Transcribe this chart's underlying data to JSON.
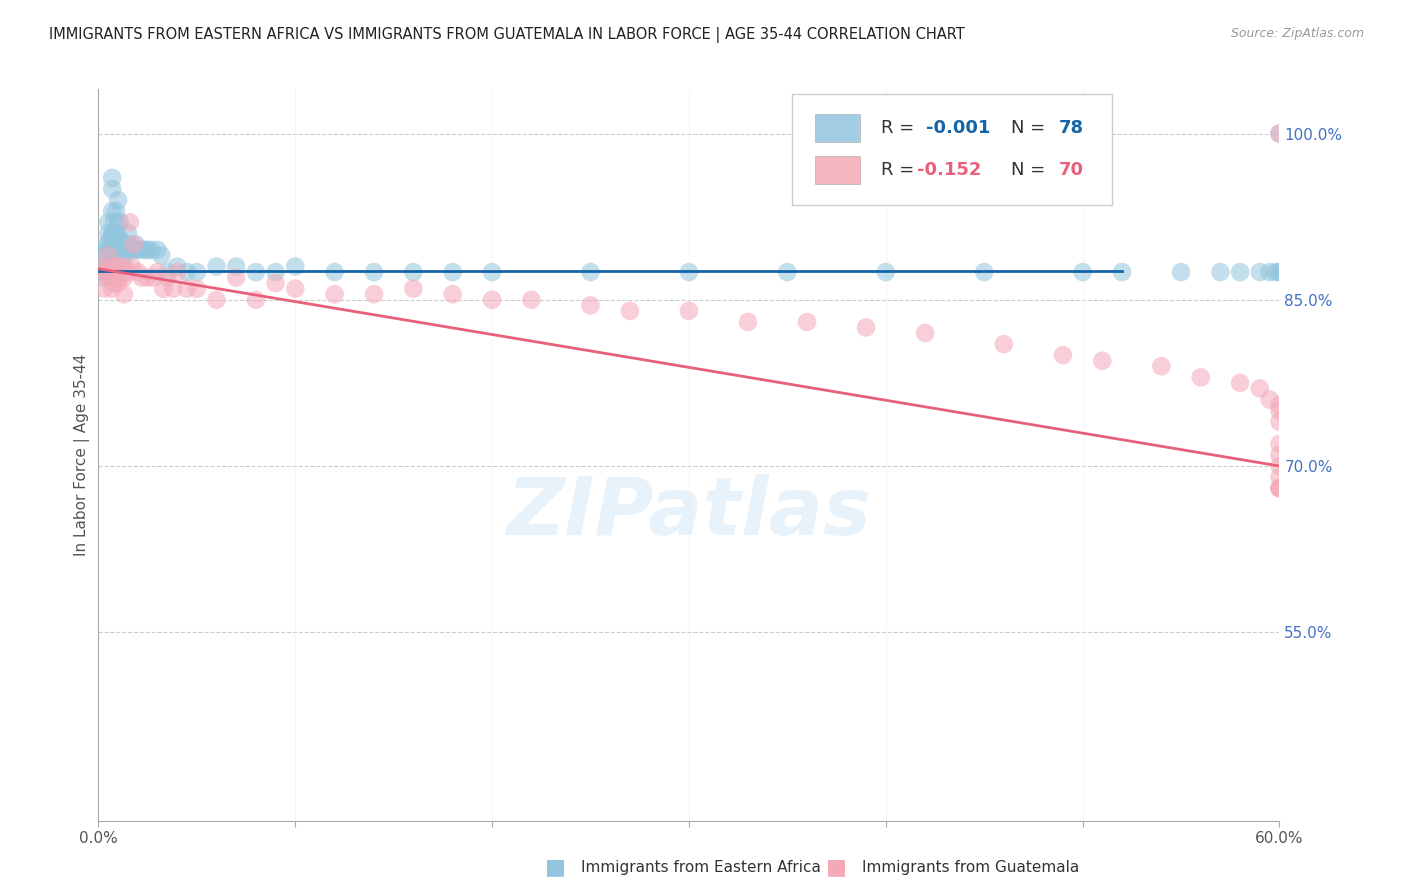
{
  "title": "IMMIGRANTS FROM EASTERN AFRICA VS IMMIGRANTS FROM GUATEMALA IN LABOR FORCE | AGE 35-44 CORRELATION CHART",
  "source": "Source: ZipAtlas.com",
  "ylabel": "In Labor Force | Age 35-44",
  "xlim": [
    0.0,
    0.6
  ],
  "ylim": [
    0.38,
    1.04
  ],
  "right_yticks": [
    1.0,
    0.85,
    0.7,
    0.55
  ],
  "right_yticklabels": [
    "100.0%",
    "85.0%",
    "70.0%",
    "55.0%"
  ],
  "legend_blue_r": "-0.001",
  "legend_blue_n": "78",
  "legend_pink_r": "-0.152",
  "legend_pink_n": "70",
  "blue_color": "#92c5de",
  "pink_color": "#f4a9b8",
  "blue_line_color": "#1464a8",
  "pink_line_color": "#e8607a",
  "blue_scatter_alpha": 0.55,
  "pink_scatter_alpha": 0.55,
  "watermark": "ZIPatlas",
  "legend_x_label": "Immigrants from Eastern Africa",
  "legend_p_label": "Immigrants from Guatemala",
  "blue_r_color": "#1464a8",
  "pink_r_color": "#e8607a",
  "blue_x": [
    0.002,
    0.002,
    0.003,
    0.003,
    0.003,
    0.004,
    0.004,
    0.004,
    0.005,
    0.005,
    0.005,
    0.005,
    0.006,
    0.006,
    0.006,
    0.007,
    0.007,
    0.007,
    0.007,
    0.008,
    0.008,
    0.008,
    0.009,
    0.009,
    0.009,
    0.01,
    0.01,
    0.01,
    0.011,
    0.011,
    0.012,
    0.012,
    0.013,
    0.013,
    0.014,
    0.015,
    0.015,
    0.016,
    0.017,
    0.018,
    0.019,
    0.02,
    0.022,
    0.024,
    0.025,
    0.027,
    0.03,
    0.032,
    0.035,
    0.04,
    0.045,
    0.05,
    0.06,
    0.07,
    0.08,
    0.09,
    0.1,
    0.12,
    0.14,
    0.16,
    0.18,
    0.2,
    0.25,
    0.3,
    0.35,
    0.4,
    0.45,
    0.5,
    0.52,
    0.55,
    0.57,
    0.58,
    0.59,
    0.595,
    0.598,
    0.6,
    0.6,
    0.6
  ],
  "blue_y": [
    0.88,
    0.875,
    0.895,
    0.88,
    0.87,
    0.9,
    0.89,
    0.875,
    0.92,
    0.91,
    0.895,
    0.88,
    0.905,
    0.895,
    0.88,
    0.96,
    0.95,
    0.93,
    0.91,
    0.92,
    0.91,
    0.895,
    0.93,
    0.91,
    0.895,
    0.94,
    0.92,
    0.905,
    0.92,
    0.905,
    0.9,
    0.89,
    0.9,
    0.885,
    0.895,
    0.91,
    0.895,
    0.9,
    0.895,
    0.895,
    0.9,
    0.895,
    0.895,
    0.895,
    0.895,
    0.895,
    0.895,
    0.89,
    0.875,
    0.88,
    0.875,
    0.875,
    0.88,
    0.88,
    0.875,
    0.875,
    0.88,
    0.875,
    0.875,
    0.875,
    0.875,
    0.875,
    0.875,
    0.875,
    0.875,
    0.875,
    0.875,
    0.875,
    0.875,
    0.875,
    0.875,
    0.875,
    0.875,
    0.875,
    0.875,
    0.875,
    0.875,
    1.0
  ],
  "pink_x": [
    0.002,
    0.003,
    0.003,
    0.004,
    0.005,
    0.005,
    0.006,
    0.007,
    0.007,
    0.008,
    0.008,
    0.009,
    0.01,
    0.01,
    0.011,
    0.012,
    0.013,
    0.013,
    0.015,
    0.016,
    0.017,
    0.018,
    0.02,
    0.022,
    0.025,
    0.028,
    0.03,
    0.033,
    0.035,
    0.038,
    0.04,
    0.045,
    0.05,
    0.06,
    0.07,
    0.08,
    0.09,
    0.1,
    0.12,
    0.14,
    0.16,
    0.18,
    0.2,
    0.22,
    0.25,
    0.27,
    0.3,
    0.33,
    0.36,
    0.39,
    0.42,
    0.46,
    0.49,
    0.51,
    0.54,
    0.56,
    0.58,
    0.59,
    0.595,
    0.6,
    0.6,
    0.6,
    0.6,
    0.6,
    0.6,
    0.6,
    0.6,
    0.6,
    0.6,
    0.6
  ],
  "pink_y": [
    0.88,
    0.875,
    0.86,
    0.875,
    0.89,
    0.87,
    0.875,
    0.87,
    0.86,
    0.88,
    0.865,
    0.87,
    0.88,
    0.865,
    0.87,
    0.88,
    0.87,
    0.855,
    0.875,
    0.92,
    0.88,
    0.9,
    0.875,
    0.87,
    0.87,
    0.87,
    0.875,
    0.86,
    0.87,
    0.86,
    0.875,
    0.86,
    0.86,
    0.85,
    0.87,
    0.85,
    0.865,
    0.86,
    0.855,
    0.855,
    0.86,
    0.855,
    0.85,
    0.85,
    0.845,
    0.84,
    0.84,
    0.83,
    0.83,
    0.825,
    0.82,
    0.81,
    0.8,
    0.795,
    0.79,
    0.78,
    0.775,
    0.77,
    0.76,
    0.755,
    0.75,
    0.74,
    0.72,
    0.71,
    0.7,
    0.69,
    0.68,
    0.68,
    0.68,
    1.0
  ]
}
